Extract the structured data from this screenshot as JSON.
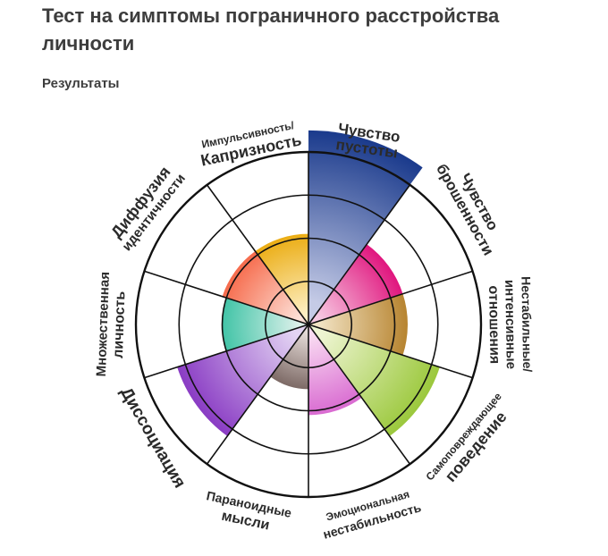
{
  "page": {
    "title": "Тест на симптомы пограничного расстройства личности",
    "subtitle": "Результаты"
  },
  "chart_data": {
    "type": "polar-area",
    "max": 4,
    "sectors": [
      {
        "lines": [
          "Чувство",
          "пустоты"
        ],
        "value": 4.5,
        "color_inner": "#c5cbe6",
        "color_outer": "#1a3a8c"
      },
      {
        "lines": [
          "Чувство",
          "брошенности"
        ],
        "value": 2.3,
        "color_inner": "#f7c9e2",
        "color_outer": "#e0167e"
      },
      {
        "lines": [
          "Нестабильные/",
          "интенсивные",
          "отношения"
        ],
        "value": 2.3,
        "color_inner": "#f1e2c2",
        "color_outer": "#b78430"
      },
      {
        "lines": [
          "Самоповреждающее",
          "поведение"
        ],
        "value": 3.2,
        "color_inner": "#eef5d2",
        "color_outer": "#9bc83c"
      },
      {
        "lines": [
          "Эмоциональная",
          "нестабильность"
        ],
        "value": 2.1,
        "color_inner": "#f9dcf2",
        "color_outer": "#d96bd1"
      },
      {
        "lines": [
          "Параноидные",
          "мысли"
        ],
        "value": 1.5,
        "color_inner": "#e6dcd8",
        "color_outer": "#7d6a66"
      },
      {
        "lines": [
          "Диссоциация"
        ],
        "value": 3.2,
        "color_inner": "#e3d4f3",
        "color_outer": "#8a3cc4"
      },
      {
        "lines": [
          "Множественная",
          "личность"
        ],
        "value": 2.0,
        "color_inner": "#dbf0ea",
        "color_outer": "#42c4a7"
      },
      {
        "lines": [
          "Диффузия",
          "идентичности"
        ],
        "value": 2.1,
        "color_inner": "#fde1d8",
        "color_outer": "#f66b4c"
      },
      {
        "lines": [
          "Импульсивность/",
          "Капризность"
        ],
        "value": 2.1,
        "color_inner": "#fdefc4",
        "color_outer": "#ebad14"
      }
    ]
  }
}
